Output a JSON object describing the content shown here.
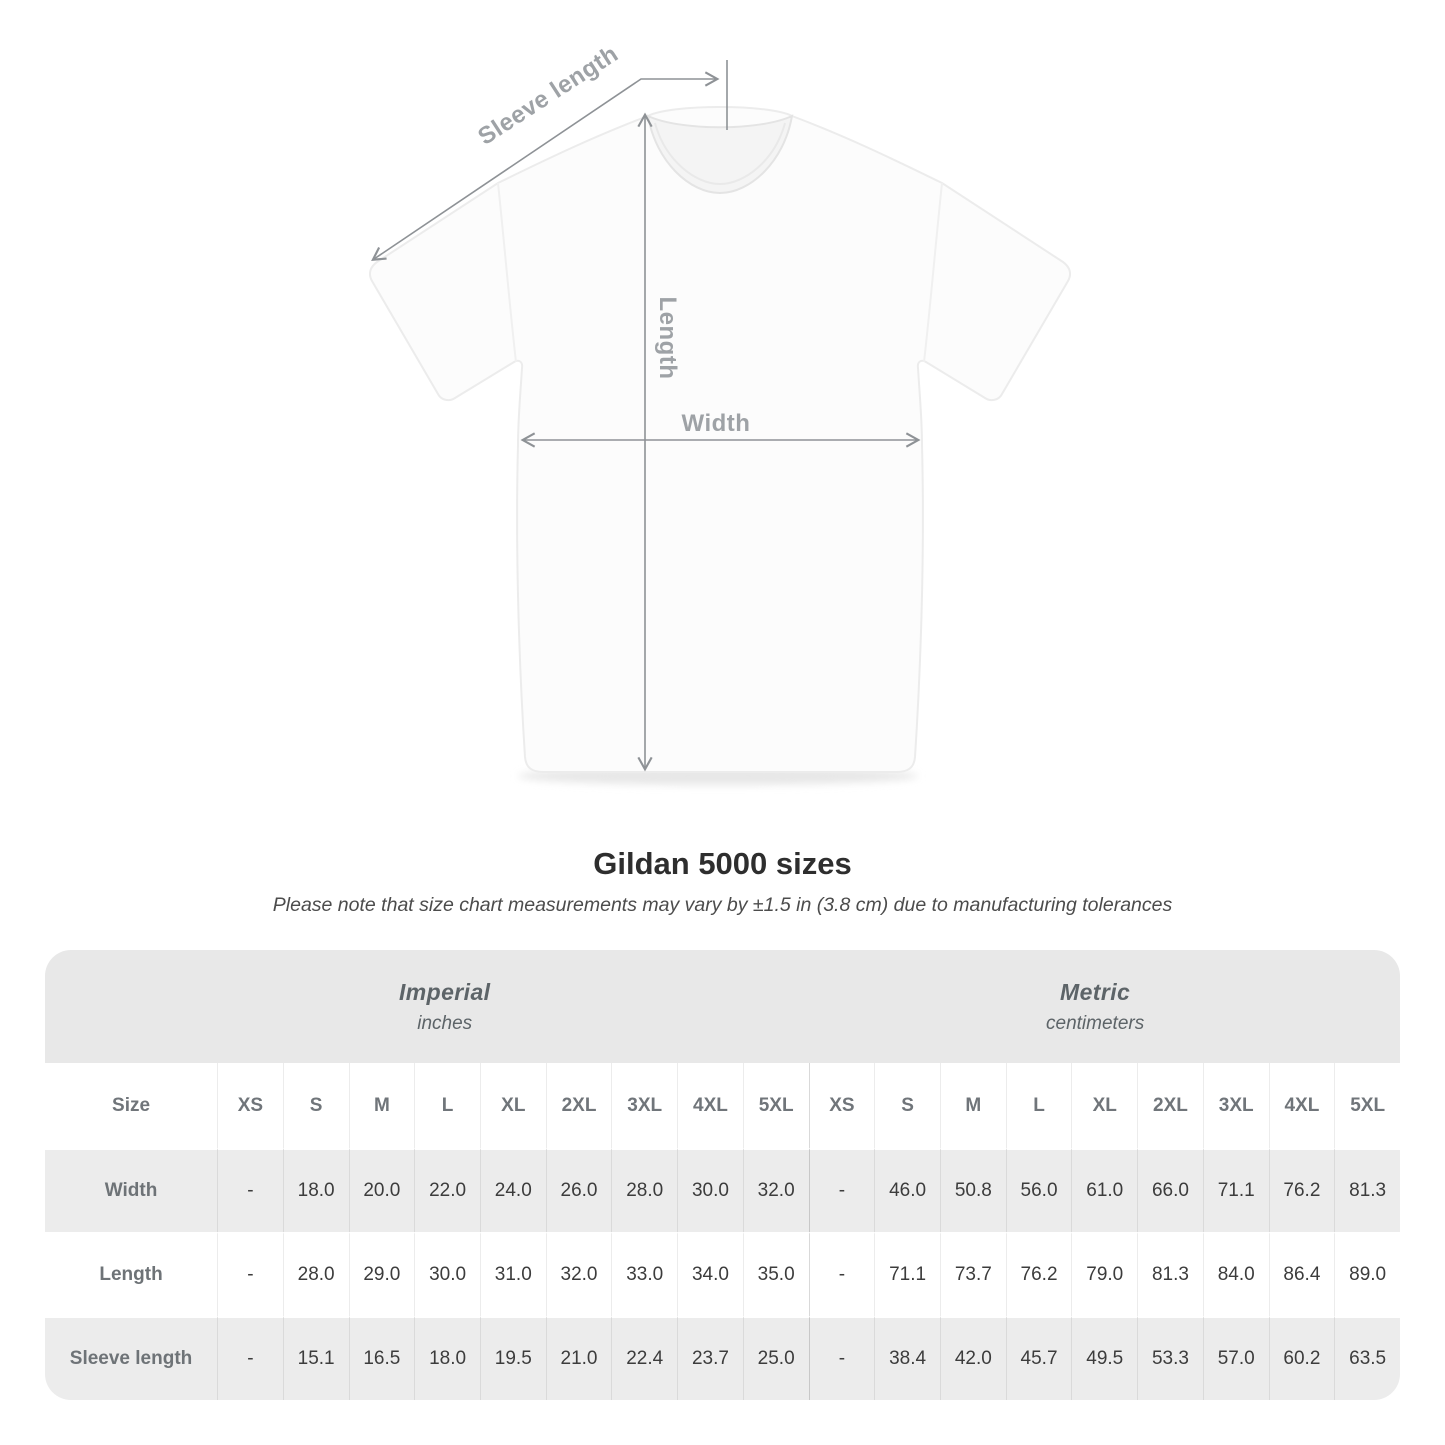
{
  "diagram": {
    "sleeve_length_label": "Sleeve length",
    "length_label": "Length",
    "width_label": "Width"
  },
  "chart_data": {
    "type": "table",
    "title": "Gildan 5000 sizes",
    "subtitle": "Please note that size chart measurements may vary by ±1.5 in (3.8 cm) due to manufacturing tolerances",
    "corner_label": "Size",
    "unit_groups": [
      {
        "name": "Imperial",
        "unit": "inches"
      },
      {
        "name": "Metric",
        "unit": "centimeters"
      }
    ],
    "columns": [
      "XS",
      "S",
      "M",
      "L",
      "XL",
      "2XL",
      "3XL",
      "4XL",
      "5XL",
      "XS",
      "S",
      "M",
      "L",
      "XL",
      "2XL",
      "3XL",
      "4XL",
      "5XL"
    ],
    "rows": [
      {
        "label": "Width",
        "values": [
          "-",
          "18.0",
          "20.0",
          "22.0",
          "24.0",
          "26.0",
          "28.0",
          "30.0",
          "32.0",
          "-",
          "46.0",
          "50.8",
          "56.0",
          "61.0",
          "66.0",
          "71.1",
          "76.2",
          "81.3"
        ]
      },
      {
        "label": "Length",
        "values": [
          "-",
          "28.0",
          "29.0",
          "30.0",
          "31.0",
          "32.0",
          "33.0",
          "34.0",
          "35.0",
          "-",
          "71.1",
          "73.7",
          "76.2",
          "79.0",
          "81.3",
          "84.0",
          "86.4",
          "89.0"
        ]
      },
      {
        "label": "Sleeve length",
        "values": [
          "-",
          "15.1",
          "16.5",
          "18.0",
          "19.5",
          "21.0",
          "22.4",
          "23.7",
          "25.0",
          "-",
          "38.4",
          "42.0",
          "45.7",
          "49.5",
          "53.3",
          "57.0",
          "60.2",
          "63.5"
        ]
      }
    ]
  },
  "colors": {
    "measure_line": "#8e9296",
    "measure_label": "#9ea2a6",
    "band_background": "#e8e8e8",
    "row_shade": "#ececec",
    "header_text": "#70757a",
    "cell_text": "#3c3c3c",
    "title_text": "#2e2e2e",
    "subtitle_text": "#4c4c4c",
    "unit_text": "#5d6468"
  }
}
